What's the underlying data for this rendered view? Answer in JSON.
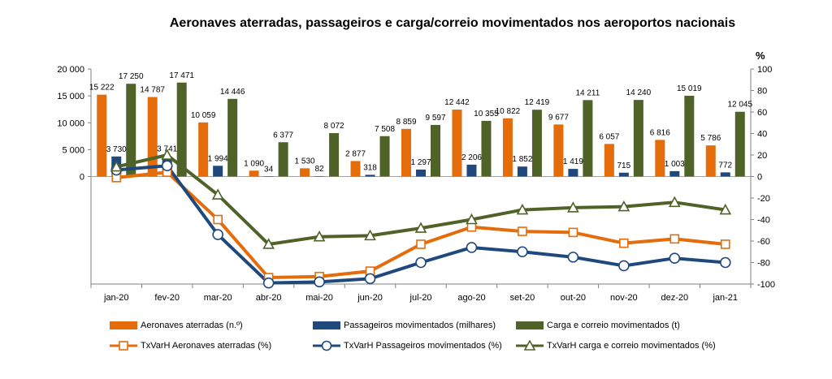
{
  "chart_data": {
    "type": "bar+line",
    "title": "Aeronaves aterradas, passageiros e carga/correio movimentados nos aeroportos nacionais",
    "right_axis_unit": "%",
    "categories": [
      "jan-20",
      "fev-20",
      "mar-20",
      "abr-20",
      "mai-20",
      "jun-20",
      "jul-20",
      "ago-20",
      "set-20",
      "out-20",
      "nov-20",
      "dez-20",
      "jan-21"
    ],
    "left_axis": {
      "ylim": [
        0,
        20000
      ],
      "ticks": [
        0,
        5000,
        10000,
        15000,
        20000
      ],
      "tick_labels": [
        "0",
        "5 000",
        "10 000",
        "15 000",
        "20 000"
      ]
    },
    "right_axis": {
      "ylim": [
        -100,
        100
      ],
      "ticks": [
        -100,
        -80,
        -60,
        -40,
        -20,
        0,
        20,
        40,
        60,
        80,
        100
      ],
      "tick_labels": [
        "-100",
        "-80",
        "-60",
        "-40",
        "-20",
        "0",
        "20",
        "40",
        "60",
        "80",
        "100"
      ]
    },
    "bar_series": [
      {
        "name": "Aeronaves aterradas (n.º)",
        "color": "#E46C0A",
        "values": [
          15222,
          14787,
          10059,
          1090,
          1530,
          2877,
          8859,
          12442,
          10822,
          9677,
          6057,
          6816,
          5786
        ],
        "labels": [
          "15 222",
          "14 787",
          "10 059",
          "1 090",
          "1 530",
          "2 877",
          "8 859",
          "12 442",
          "10 822",
          "9 677",
          "6 057",
          "6 816",
          "5 786"
        ]
      },
      {
        "name": "Passageiros movimentados (milhares)",
        "color": "#1F497D",
        "values": [
          3730,
          3741,
          1994,
          34,
          82,
          318,
          1297,
          2206,
          1852,
          1419,
          715,
          1003,
          772
        ],
        "labels": [
          "3 730",
          "3 741",
          "1 994",
          "34",
          "82",
          "318",
          "1 297",
          "2 206",
          "1 852",
          "1 419",
          "715",
          "1 003",
          "772"
        ]
      },
      {
        "name": "Carga e correio movimentados (t)",
        "color": "#4F6228",
        "values": [
          17250,
          17471,
          14446,
          6377,
          8072,
          7508,
          9597,
          10355,
          12419,
          14211,
          14240,
          15019,
          12045
        ],
        "labels": [
          "17 250",
          "17 471",
          "14 446",
          "6 377",
          "8 072",
          "7 508",
          "9 597",
          "10 355",
          "12 419",
          "14 211",
          "14 240",
          "15 019",
          "12 045"
        ]
      }
    ],
    "line_series": [
      {
        "name": "TxVarH Aeronaves aterradas (%)",
        "color": "#E46C0A",
        "marker": "square",
        "values": [
          -1,
          4,
          -40,
          -94,
          -93,
          -88,
          -63,
          -47,
          -51,
          -52,
          -62,
          -58,
          -63
        ]
      },
      {
        "name": "TxVarH Passageiros movimentados (%)",
        "color": "#1F497D",
        "marker": "circle",
        "values": [
          6,
          10,
          -54,
          -99,
          -98,
          -95,
          -80,
          -66,
          -70,
          -75,
          -83,
          -76,
          -80
        ]
      },
      {
        "name": "TxVarH carga e correio movimentados (%)",
        "color": "#4F6228",
        "marker": "triangle",
        "values": [
          9,
          20,
          -17,
          -63,
          -56,
          -55,
          -48,
          -40,
          -31,
          -29,
          -28,
          -24,
          -31
        ]
      }
    ]
  }
}
